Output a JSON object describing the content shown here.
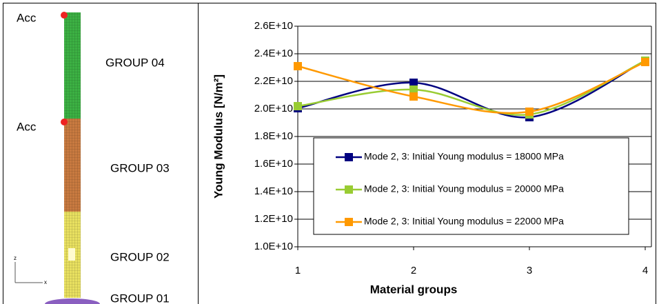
{
  "model": {
    "labels": [
      "Acc",
      "GROUP 04",
      "Acc",
      "GROUP 03",
      "GROUP 02",
      "GROUP 01"
    ],
    "axes": [
      "z",
      "x"
    ]
  },
  "chart_data": {
    "type": "line",
    "x_label": "Material groups",
    "y_label": "Young Modulus [N/m²]",
    "x": [
      1,
      2,
      3,
      4
    ],
    "xlim": [
      1,
      4
    ],
    "xticks": [
      1,
      2,
      3,
      4
    ],
    "ylim": [
      10000000000,
      26000000000
    ],
    "yticks": [
      {
        "value": 10000000000,
        "label": "1.0E+10"
      },
      {
        "value": 12000000000,
        "label": "1.2E+10"
      },
      {
        "value": 14000000000,
        "label": "1.4E+10"
      },
      {
        "value": 16000000000,
        "label": "1.6E+10"
      },
      {
        "value": 18000000000,
        "label": "1.8E+10"
      },
      {
        "value": 20000000000,
        "label": "2.0E+10"
      },
      {
        "value": 22000000000,
        "label": "2.2E+10"
      },
      {
        "value": 24000000000,
        "label": "2.4E+10"
      },
      {
        "value": 26000000000,
        "label": "2.6E+10"
      }
    ],
    "grid": true,
    "smooth": true,
    "legend": "center",
    "series": [
      {
        "name": "Mode 2, 3: Initial Young modulus = 18000 MPa",
        "color": "#000080",
        "values": [
          20050000000,
          21900000000,
          19400000000,
          23500000000
        ]
      },
      {
        "name": "Mode 2, 3: Initial Young modulus = 20000 MPa",
        "color": "#99cc33",
        "values": [
          20200000000,
          21400000000,
          19600000000,
          23500000000
        ]
      },
      {
        "name": "Mode 2, 3: Initial Young modulus = 22000 MPa",
        "color": "#ff9900",
        "values": [
          23100000000,
          20900000000,
          19800000000,
          23400000000
        ]
      }
    ]
  }
}
